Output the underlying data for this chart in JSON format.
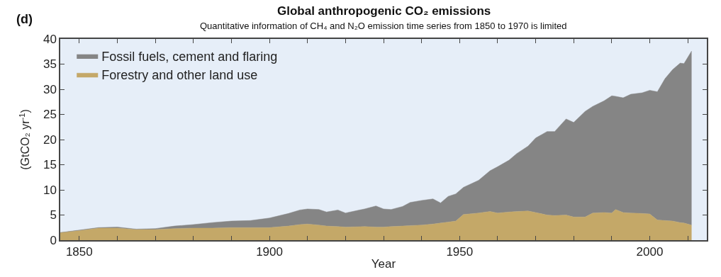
{
  "chart_data": {
    "type": "area",
    "stacked": true,
    "title": "Global anthropogenic CO₂ emissions",
    "subtitle": "Quantitative information of CH₄ and N₂O emission time series from 1850 to 1970 is limited",
    "xlabel": "Year",
    "ylabel": "(GtCO₂ yr$^{-1}$)",
    "annotations": [
      "(d)"
    ],
    "x": [
      1845,
      1850,
      1855,
      1860,
      1865,
      1870,
      1875,
      1880,
      1885,
      1890,
      1895,
      1900,
      1905,
      1908,
      1910,
      1913,
      1915,
      1918,
      1920,
      1925,
      1928,
      1930,
      1932,
      1935,
      1937,
      1940,
      1943,
      1945,
      1947,
      1949,
      1951,
      1955,
      1958,
      1960,
      1963,
      1965,
      1968,
      1970,
      1973,
      1975,
      1978,
      1980,
      1983,
      1985,
      1988,
      1990,
      1991,
      1993,
      1995,
      1998,
      2000,
      2002,
      2004,
      2006,
      2008,
      2009,
      2011
    ],
    "series": [
      {
        "name": "Forestry and other land use",
        "color": "#c4a868",
        "values": [
          1.5,
          1.9,
          2.4,
          2.4,
          2.1,
          2.1,
          2.3,
          2.4,
          2.4,
          2.5,
          2.5,
          2.5,
          2.8,
          3.1,
          3.2,
          3.0,
          2.8,
          2.7,
          2.6,
          2.7,
          2.6,
          2.6,
          2.7,
          2.8,
          2.9,
          3.0,
          3.2,
          3.4,
          3.6,
          3.8,
          5.1,
          5.4,
          5.7,
          5.4,
          5.6,
          5.7,
          5.8,
          5.5,
          5.0,
          4.9,
          5.0,
          4.6,
          4.6,
          5.4,
          5.5,
          5.4,
          6.1,
          5.5,
          5.4,
          5.3,
          5.2,
          4.0,
          3.9,
          3.8,
          3.5,
          3.4,
          3.0
        ]
      },
      {
        "name": "Fossil fuels, cement and flaring",
        "color": "#858585",
        "values": [
          0.0,
          0.1,
          0.1,
          0.2,
          0.1,
          0.2,
          0.5,
          0.7,
          1.1,
          1.3,
          1.4,
          1.9,
          2.5,
          2.9,
          3.0,
          3.1,
          2.8,
          3.3,
          2.8,
          3.5,
          4.2,
          3.6,
          3.4,
          3.9,
          4.6,
          4.9,
          5.0,
          4.0,
          5.1,
          5.4,
          5.4,
          6.5,
          8.1,
          9.2,
          10.3,
          11.5,
          12.9,
          14.8,
          16.6,
          16.7,
          19.1,
          18.8,
          21.0,
          21.2,
          22.2,
          23.3,
          22.5,
          22.8,
          23.6,
          24.0,
          24.6,
          25.5,
          28.2,
          30.1,
          31.7,
          31.7,
          34.6
        ]
      }
    ],
    "xlim": [
      1845,
      2015
    ],
    "xticks": [
      1850,
      {
        "value": 1860,
        "label": null
      },
      {
        "value": 1870,
        "label": null
      },
      {
        "value": 1880,
        "label": null
      },
      {
        "value": 1890,
        "label": null
      },
      1900,
      {
        "value": 1910,
        "label": null
      },
      {
        "value": 1920,
        "label": null
      },
      {
        "value": 1930,
        "label": null
      },
      {
        "value": 1940,
        "label": null
      },
      1950,
      {
        "value": 1960,
        "label": null
      },
      {
        "value": 1970,
        "label": null
      },
      {
        "value": 1980,
        "label": null
      },
      {
        "value": 1990,
        "label": null
      },
      2000,
      {
        "value": 2010,
        "label": null
      }
    ],
    "ylim": [
      0,
      40
    ],
    "yticks": [
      0,
      5,
      10,
      15,
      20,
      25,
      30,
      35,
      40
    ],
    "grid": false,
    "legend": "top left"
  }
}
